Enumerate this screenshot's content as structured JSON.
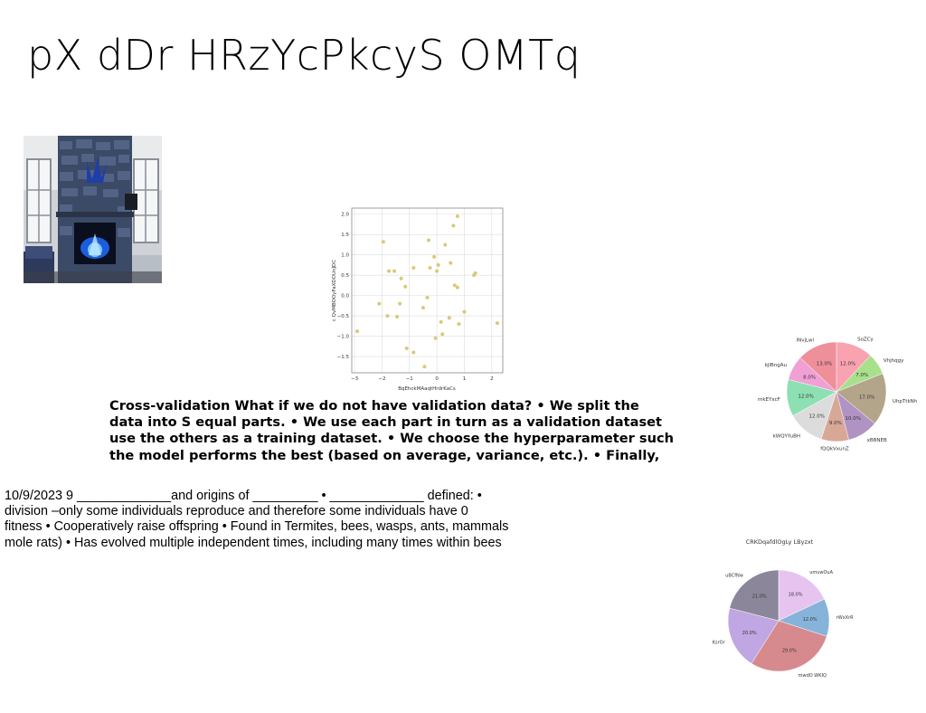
{
  "slide": {
    "title": "pX dDr HRzYcPkcyS OMTq",
    "bold_paragraph": "Cross-validation What if we do not have validation data? • We split the data into S equal parts. • We use each part in turn as a validation dataset use the others as a training dataset. • We choose the hyperparameter such the model performs the best (based on average, variance, etc.). • Finally,",
    "bold_lines": [
      "Cross-validation What if we do not have validation data? • We split the",
      "data into S equal parts. • We use each part in turn as a validation dataset",
      "use the others as a training dataset. • We choose the hyperparameter such",
      "the model performs the best (based on average, variance, etc.). • Finally,"
    ],
    "plain_lines": [
      "10/9/2023 9 _____________and origins of _________ • _____________ defined: •",
      "division –only some individuals reproduce and therefore some individuals have 0",
      "fitness • Cooperatively raise offspring • Found in Termites, bees, wasps, ants, mammals",
      "mole rats) • Has evolved multiple independent times, including many times within bees"
    ]
  },
  "chart_data": [
    {
      "type": "scatter",
      "xlabel": "BqEhckMAaqtHrdrKaCs",
      "ylabel": "c QvMBOOyFaXDOUnJDC",
      "xlim": [
        -3.1,
        2.4
      ],
      "ylim": [
        -1.9,
        2.15
      ],
      "xticks": [
        -3,
        -2,
        -1,
        0,
        1,
        2
      ],
      "yticks": [
        -1.5,
        -1.0,
        -0.5,
        0.0,
        0.5,
        1.0,
        1.5,
        2.0
      ],
      "grid": true,
      "color": "#d9c97a",
      "points": [
        [
          -2.9,
          -0.88
        ],
        [
          -2.1,
          -0.2
        ],
        [
          -1.95,
          1.32
        ],
        [
          -1.8,
          -0.5
        ],
        [
          -1.75,
          0.6
        ],
        [
          -1.55,
          0.6
        ],
        [
          -1.45,
          -0.52
        ],
        [
          -1.35,
          -0.2
        ],
        [
          -1.3,
          0.42
        ],
        [
          -1.15,
          0.22
        ],
        [
          -1.1,
          -1.3
        ],
        [
          -0.85,
          -1.4
        ],
        [
          -0.85,
          0.68
        ],
        [
          -0.5,
          -0.3
        ],
        [
          -0.45,
          -1.75
        ],
        [
          -0.35,
          -0.05
        ],
        [
          -0.3,
          1.36
        ],
        [
          -0.25,
          0.68
        ],
        [
          -0.1,
          0.95
        ],
        [
          -0.05,
          -1.05
        ],
        [
          0.0,
          0.6
        ],
        [
          0.05,
          0.75
        ],
        [
          0.15,
          -0.65
        ],
        [
          0.2,
          -0.95
        ],
        [
          0.3,
          1.25
        ],
        [
          0.45,
          -0.55
        ],
        [
          0.5,
          0.8
        ],
        [
          0.6,
          1.72
        ],
        [
          0.65,
          0.25
        ],
        [
          0.75,
          1.95
        ],
        [
          0.75,
          0.2
        ],
        [
          0.8,
          -0.7
        ],
        [
          1.0,
          -0.4
        ],
        [
          1.35,
          0.5
        ],
        [
          1.4,
          0.55
        ],
        [
          2.2,
          -0.68
        ]
      ]
    },
    {
      "type": "pie",
      "labels": [
        "SoZCy",
        "Vhjhqgy",
        "UhpTtkNh",
        "xBBNEB",
        "fQQkVxunZ",
        "kWQYYuBH",
        "mkEYxcF",
        "kJlBngAu",
        "lNvjLwl"
      ],
      "values": [
        12.0,
        7.0,
        17.0,
        10.0,
        9.0,
        12.0,
        12.0,
        8.0,
        13.0
      ],
      "value_labels": [
        "12.0%",
        "7.0%",
        "17.0%",
        "10.0%",
        "9.0%",
        "12.0%",
        "12.0%",
        "8.0%",
        "13.0%"
      ],
      "colors": [
        "#f9a3b0",
        "#a9e08c",
        "#b3a589",
        "#b193c3",
        "#d8a896",
        "#dcdcdc",
        "#8de0b2",
        "#f0a0d4",
        "#ef8f9a"
      ]
    },
    {
      "type": "pie",
      "title": "CRKDqafdlOgLy LByzxt",
      "labels": [
        "umuwOuA",
        "rWxXrR",
        "mwdO WKIQ",
        "KsrOr",
        "uBCfNw"
      ],
      "values": [
        18.0,
        12.0,
        29.0,
        20.0,
        21.0
      ],
      "value_labels": [
        "18.0%",
        "12.0%",
        "29.0%",
        "20.0%",
        "21.0%"
      ],
      "colors": [
        "#e6c4ef",
        "#86b3d9",
        "#d68a8e",
        "#c0a6e3",
        "#8b8699"
      ]
    }
  ]
}
